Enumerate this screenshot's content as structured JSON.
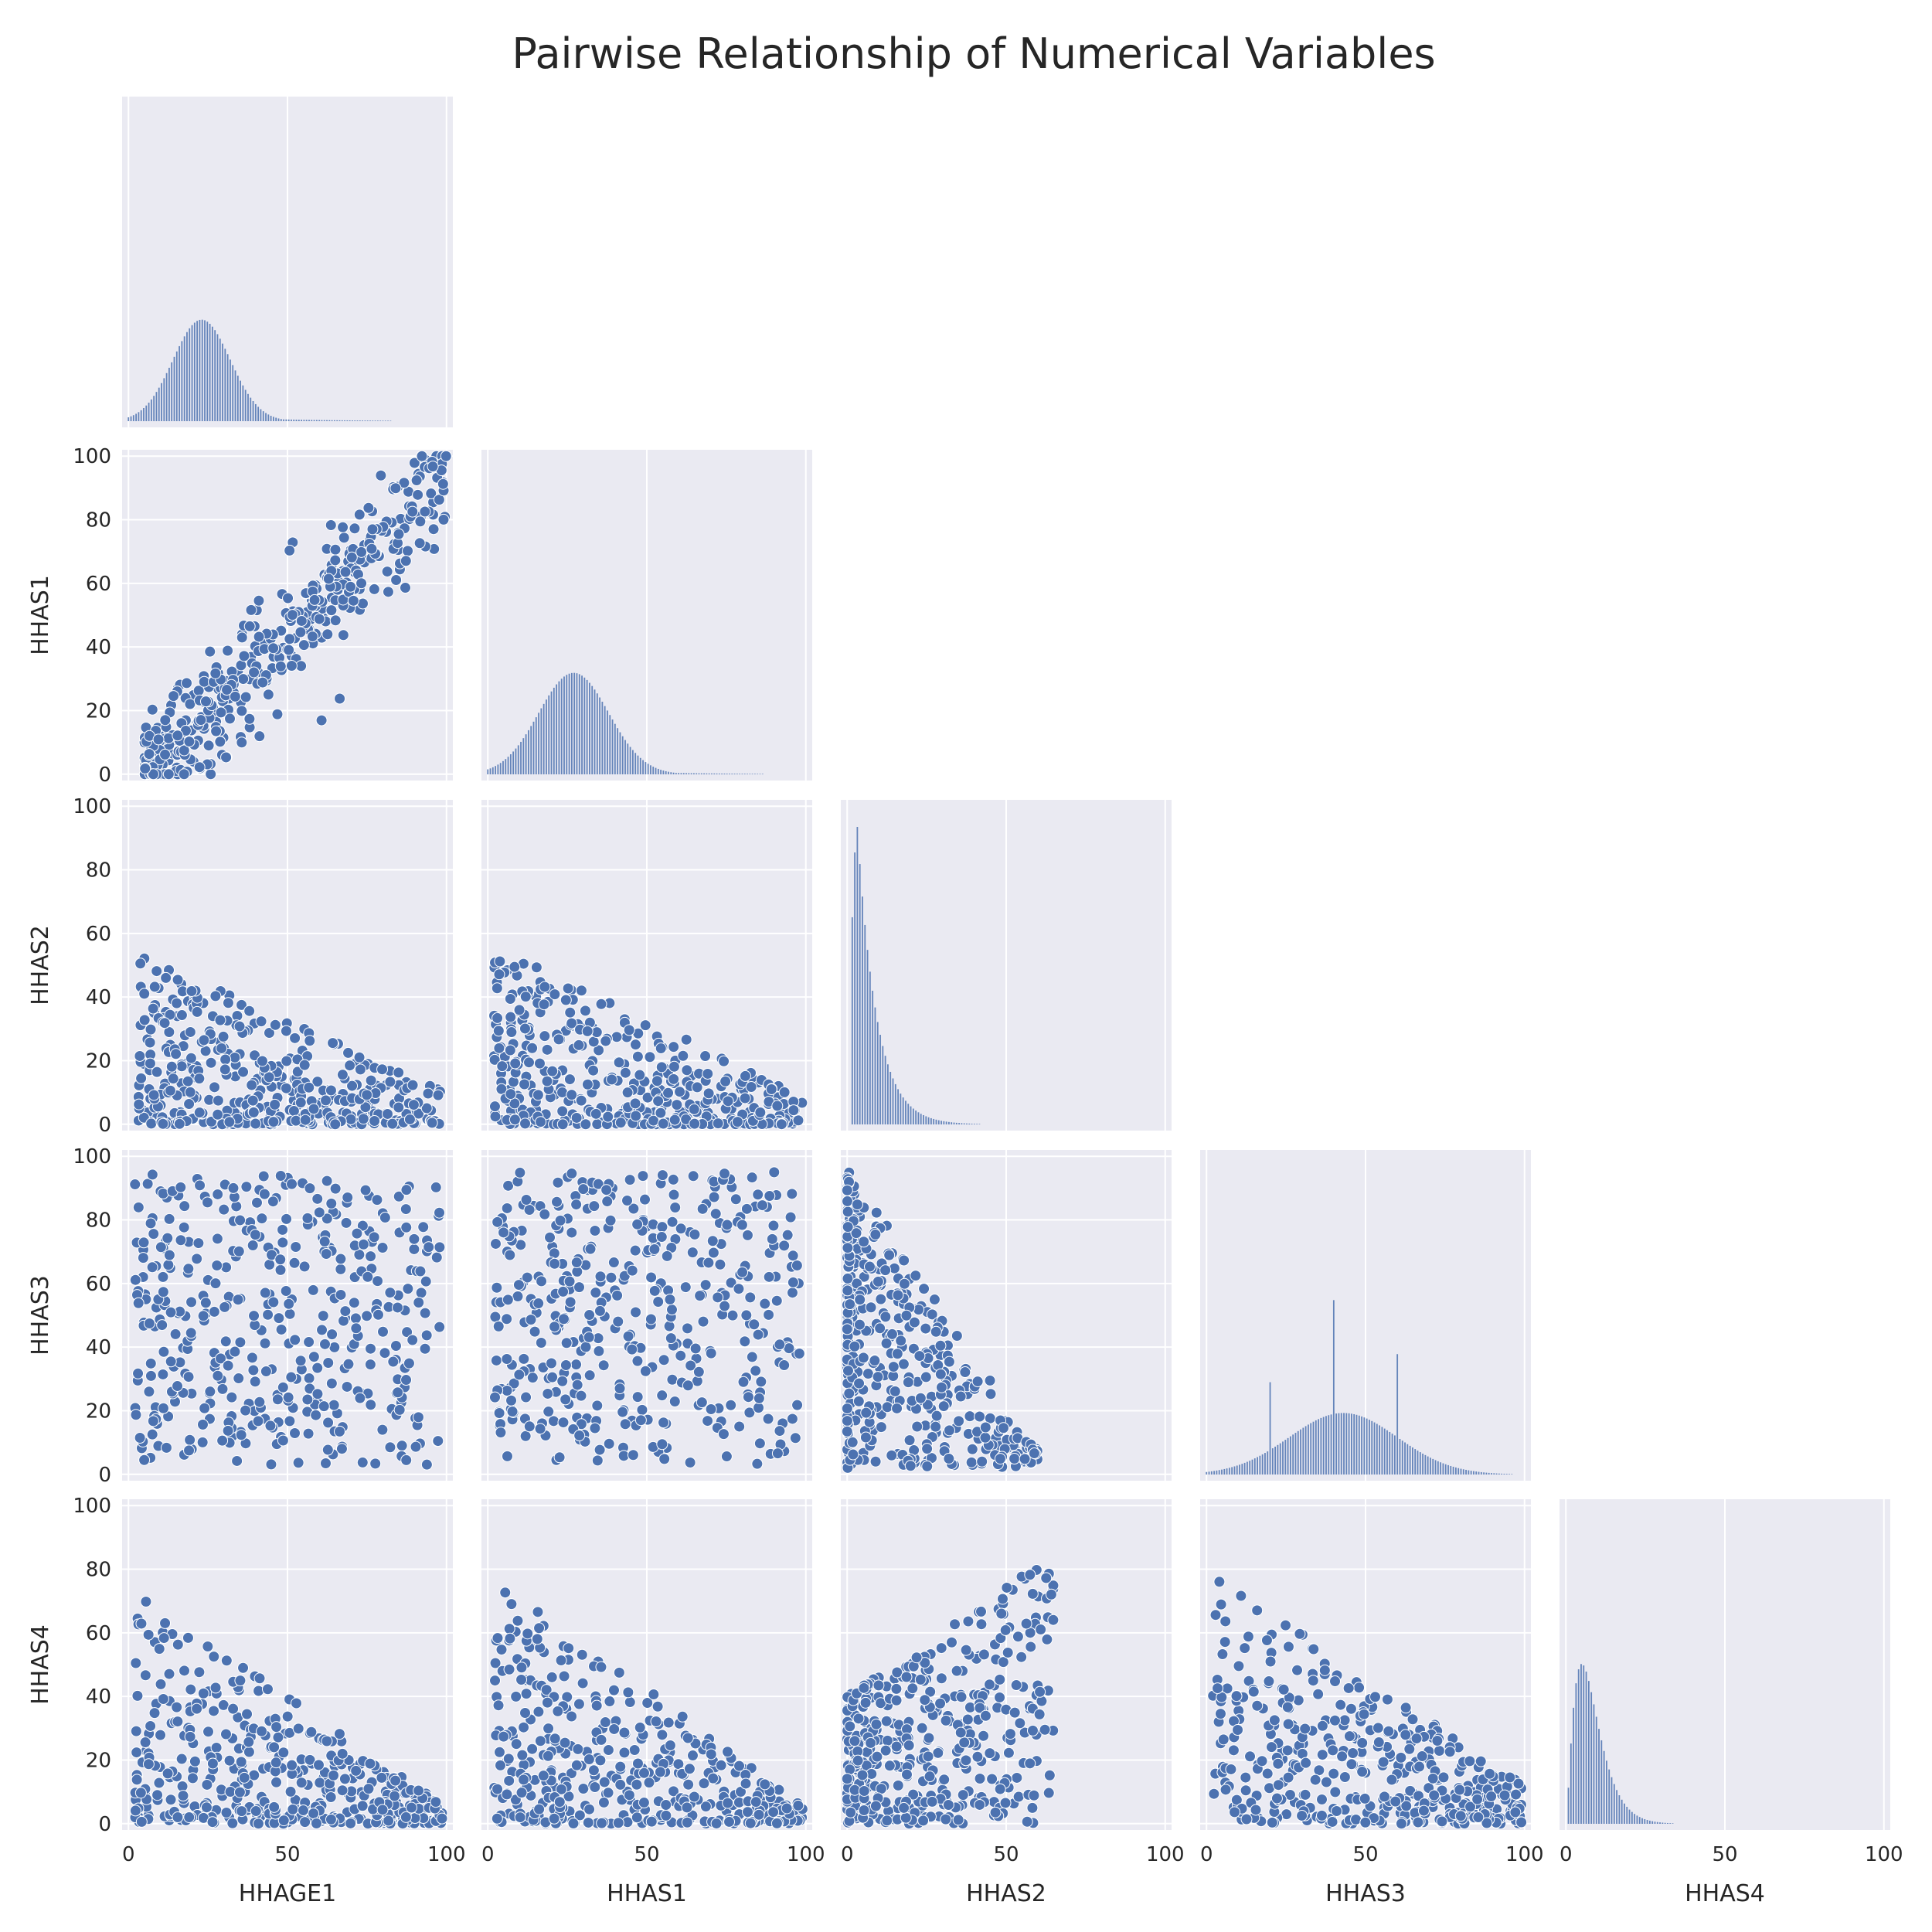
{
  "chart_data": {
    "type": "pairplot",
    "title": "Pairwise Relationship of Numerical Variables",
    "variables": [
      "HHAGE1",
      "HHAS1",
      "HHAS2",
      "HHAS3",
      "HHAS4"
    ],
    "corner": true,
    "grid": true,
    "background": "#eaeaf2",
    "marker_color": "#4c72b0",
    "axis_range": [
      0,
      100
    ],
    "tick_values": [
      0,
      20,
      40,
      60,
      80,
      100
    ],
    "x_tick_values": [
      0,
      50,
      100
    ],
    "x_tick_labels": [
      "0",
      "50",
      "100"
    ],
    "y_tick_labels": [
      "0",
      "20",
      "40",
      "60",
      "80",
      "100"
    ],
    "histograms": [
      {
        "variable": "HHAGE1",
        "shape": "normal",
        "peak": 23,
        "spread": 9,
        "tail": "right",
        "relative_height": 0.33
      },
      {
        "variable": "HHAS1",
        "shape": "normal",
        "peak": 27,
        "spread": 11,
        "tail": "right",
        "relative_height": 0.33
      },
      {
        "variable": "HHAS2",
        "shape": "exponential",
        "peak": 3,
        "decay": 6,
        "relative_height": 1.0
      },
      {
        "variable": "HHAS3",
        "shape": "normal",
        "peak": 43,
        "spread": 17,
        "spikes": [
          {
            "x": 20,
            "h": 0.22
          },
          {
            "x": 40,
            "h": 0.37
          },
          {
            "x": 60,
            "h": 0.27
          }
        ],
        "relative_height": 0.2
      },
      {
        "variable": "HHAS4",
        "shape": "gamma",
        "peak": 5,
        "decay": 9,
        "relative_height": 0.52
      }
    ],
    "scatter_relationships": [
      {
        "x": "HHAGE1",
        "y": "HHAS1",
        "relationship": "strong positive"
      },
      {
        "x": "HHAGE1",
        "y": "HHAS2",
        "relationship": "low, negative skew"
      },
      {
        "x": "HHAS1",
        "y": "HHAS2",
        "relationship": "triangular, negative"
      },
      {
        "x": "HHAGE1",
        "y": "HHAS3",
        "relationship": "widely spread"
      },
      {
        "x": "HHAS1",
        "y": "HHAS3",
        "relationship": "widely spread"
      },
      {
        "x": "HHAS2",
        "y": "HHAS3",
        "relationship": "negative triangular"
      },
      {
        "x": "HHAGE1",
        "y": "HHAS4",
        "relationship": "negative triangular"
      },
      {
        "x": "HHAS1",
        "y": "HHAS4",
        "relationship": "negative triangular"
      },
      {
        "x": "HHAS2",
        "y": "HHAS4",
        "relationship": "positive"
      },
      {
        "x": "HHAS3",
        "y": "HHAS4",
        "relationship": "negative triangular"
      }
    ]
  }
}
